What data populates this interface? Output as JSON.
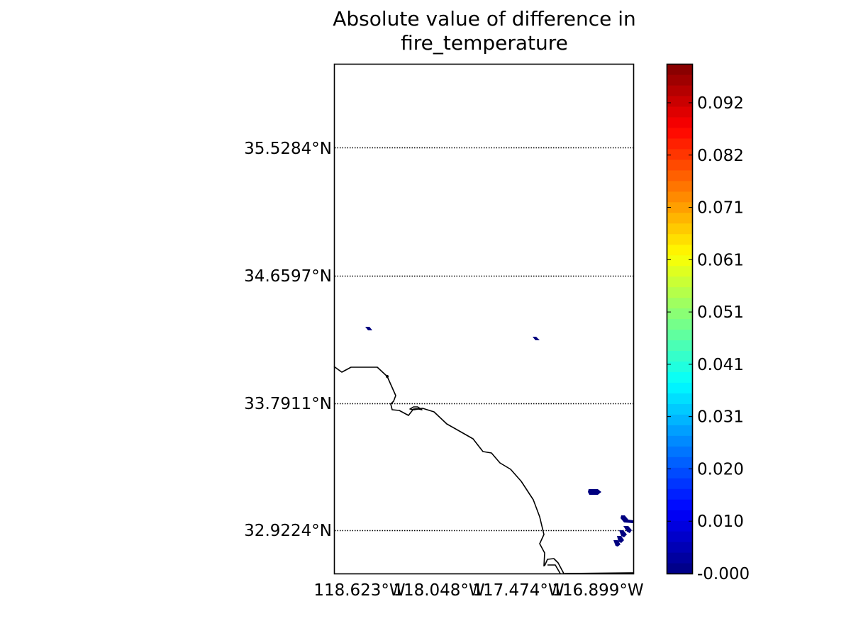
{
  "title": {
    "line1": "Absolute value of difference in",
    "line2": "fire_temperature"
  },
  "map": {
    "lat_labels": [
      "35.5284°N",
      "34.6597°N",
      "33.7911°N",
      "32.9224°N"
    ],
    "lon_labels": [
      "118.623°W",
      "118.048°W",
      "117.474°W",
      "116.899°W"
    ],
    "grid_style": "dotted",
    "features": [
      "coastline",
      "difference-patches"
    ]
  },
  "colorbar": {
    "colormap": "jet",
    "min_color": "#00007f",
    "max_color": "#7f0000",
    "tick_labels": [
      "-0.000",
      "0.010",
      "0.020",
      "0.031",
      "0.041",
      "0.051",
      "0.061",
      "0.071",
      "0.082",
      "0.092"
    ],
    "tick_values": [
      0.0,
      0.0102,
      0.0204,
      0.0306,
      0.0408,
      0.051,
      0.0612,
      0.0714,
      0.0816,
      0.0918
    ],
    "range": [
      0.0,
      0.0994
    ]
  }
}
